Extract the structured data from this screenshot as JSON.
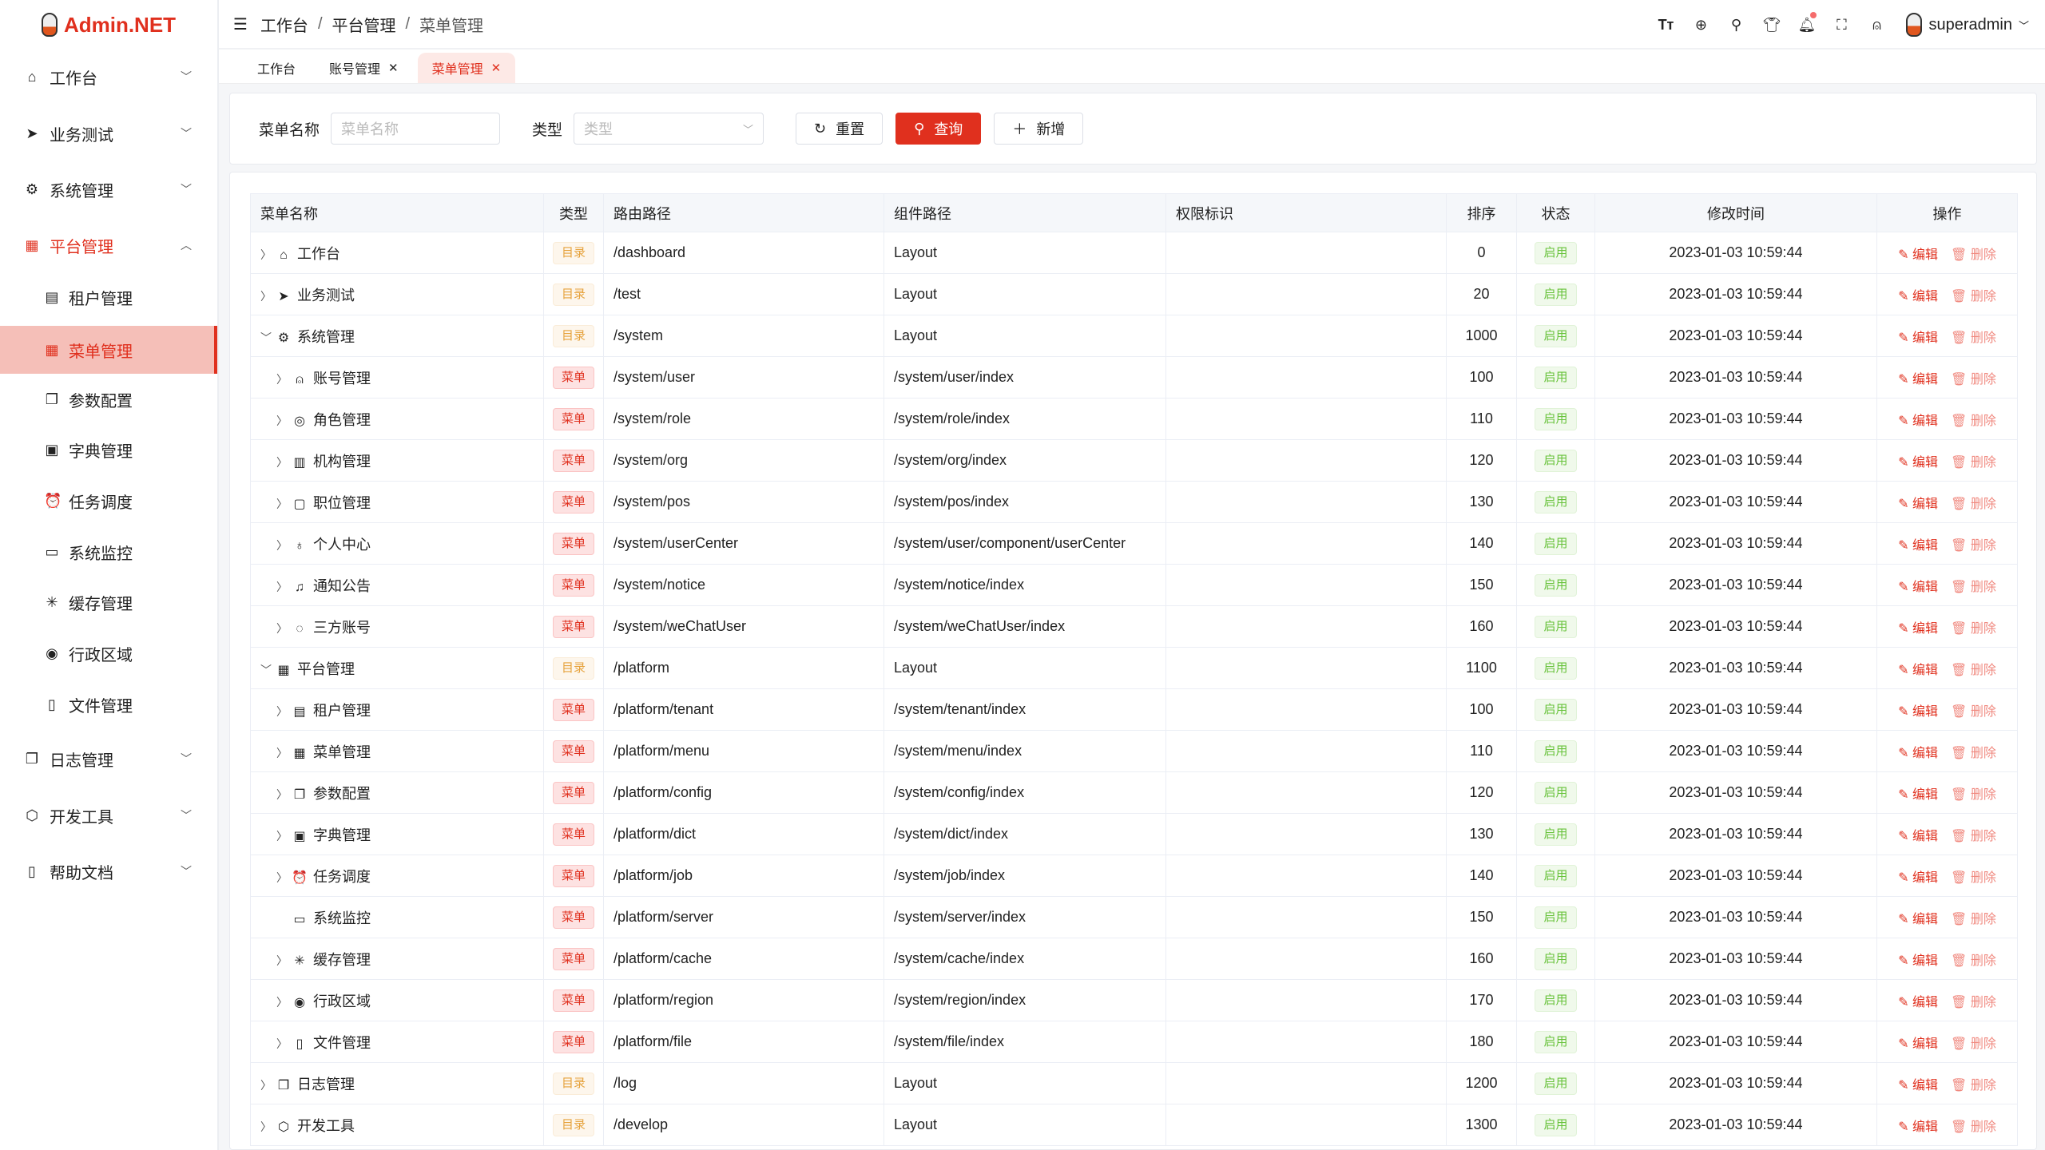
{
  "app": {
    "logo": "Admin.NET"
  },
  "sidebar": {
    "items": [
      {
        "label": "工作台",
        "icon": "home-icon",
        "glyph": "⌂",
        "chevron": "﹀",
        "type": "top"
      },
      {
        "label": "业务测试",
        "icon": "send-icon",
        "glyph": "➤",
        "chevron": "﹀",
        "type": "top"
      },
      {
        "label": "系统管理",
        "icon": "gear-icon",
        "glyph": "⚙",
        "chevron": "﹀",
        "type": "top"
      },
      {
        "label": "平台管理",
        "icon": "grid-icon",
        "glyph": "▦",
        "chevron": "︿",
        "type": "open"
      },
      {
        "label": "租户管理",
        "icon": "tenant-icon",
        "glyph": "▤",
        "type": "sub"
      },
      {
        "label": "菜单管理",
        "icon": "grid-icon",
        "glyph": "▦",
        "type": "active"
      },
      {
        "label": "参数配置",
        "icon": "config-icon",
        "glyph": "❐",
        "type": "sub"
      },
      {
        "label": "字典管理",
        "icon": "book-icon",
        "glyph": "▣",
        "type": "sub"
      },
      {
        "label": "任务调度",
        "icon": "alarm-icon",
        "glyph": "⏰",
        "type": "sub"
      },
      {
        "label": "系统监控",
        "icon": "monitor-icon",
        "glyph": "▭",
        "type": "sub"
      },
      {
        "label": "缓存管理",
        "icon": "loading-icon",
        "glyph": "✳",
        "type": "sub"
      },
      {
        "label": "行政区域",
        "icon": "location-icon",
        "glyph": "◉",
        "type": "sub"
      },
      {
        "label": "文件管理",
        "icon": "document-icon",
        "glyph": "▯",
        "type": "sub"
      },
      {
        "label": "日志管理",
        "icon": "copy-icon",
        "glyph": "❐",
        "chevron": "﹀",
        "type": "top"
      },
      {
        "label": "开发工具",
        "icon": "cpu-icon",
        "glyph": "⬡",
        "chevron": "﹀",
        "type": "top"
      },
      {
        "label": "帮助文档",
        "icon": "notebook-icon",
        "glyph": "▯",
        "chevron": "﹀",
        "type": "top"
      }
    ]
  },
  "header": {
    "breadcrumb": [
      "工作台",
      "平台管理",
      "菜单管理"
    ],
    "user": "superadmin"
  },
  "tabs": [
    {
      "label": "工作台",
      "closable": false
    },
    {
      "label": "账号管理",
      "closable": true
    },
    {
      "label": "菜单管理",
      "closable": true,
      "active": true
    }
  ],
  "search": {
    "name_label": "菜单名称",
    "name_placeholder": "菜单名称",
    "type_label": "类型",
    "type_placeholder": "类型",
    "reset": "重置",
    "query": "查询",
    "add": "新增"
  },
  "table": {
    "columns": [
      "菜单名称",
      "类型",
      "路由路径",
      "组件路径",
      "权限标识",
      "排序",
      "状态",
      "修改时间",
      "操作"
    ],
    "edit": "编辑",
    "delete": "删除",
    "rows": [
      {
        "name": "工作台",
        "icon": "home-icon",
        "glyph": "⌂",
        "level": 0,
        "expand": "collapsed",
        "type": "目录",
        "route": "/dashboard",
        "component": "Layout",
        "perm": "",
        "order": "0",
        "status": "启用",
        "time": "2023-01-03 10:59:44"
      },
      {
        "name": "业务测试",
        "icon": "send-icon",
        "glyph": "➤",
        "level": 0,
        "expand": "collapsed",
        "type": "目录",
        "route": "/test",
        "component": "Layout",
        "perm": "",
        "order": "20",
        "status": "启用",
        "time": "2023-01-03 10:59:44"
      },
      {
        "name": "系统管理",
        "icon": "gear-icon",
        "glyph": "⚙",
        "level": 0,
        "expand": "expanded",
        "type": "目录",
        "route": "/system",
        "component": "Layout",
        "perm": "",
        "order": "1000",
        "status": "启用",
        "time": "2023-01-03 10:59:44"
      },
      {
        "name": "账号管理",
        "icon": "user-icon",
        "glyph": "⍝",
        "level": 1,
        "expand": "collapsed",
        "type": "菜单",
        "route": "/system/user",
        "component": "/system/user/index",
        "perm": "",
        "order": "100",
        "status": "启用",
        "time": "2023-01-03 10:59:44"
      },
      {
        "name": "角色管理",
        "icon": "help-icon",
        "glyph": "◎",
        "level": 1,
        "expand": "collapsed",
        "type": "菜单",
        "route": "/system/role",
        "component": "/system/role/index",
        "perm": "",
        "order": "110",
        "status": "启用",
        "time": "2023-01-03 10:59:44"
      },
      {
        "name": "机构管理",
        "icon": "office-icon",
        "glyph": "▥",
        "level": 1,
        "expand": "collapsed",
        "type": "菜单",
        "route": "/system/org",
        "component": "/system/org/index",
        "perm": "",
        "order": "120",
        "status": "启用",
        "time": "2023-01-03 10:59:44"
      },
      {
        "name": "职位管理",
        "icon": "postcard-icon",
        "glyph": "▢",
        "level": 1,
        "expand": "collapsed",
        "type": "菜单",
        "route": "/system/pos",
        "component": "/system/pos/index",
        "perm": "",
        "order": "130",
        "status": "启用",
        "time": "2023-01-03 10:59:44"
      },
      {
        "name": "个人中心",
        "icon": "medal-icon",
        "glyph": "♁",
        "level": 1,
        "expand": "collapsed",
        "type": "菜单",
        "route": "/system/userCenter",
        "component": "/system/user/component/userCenter",
        "perm": "",
        "order": "140",
        "status": "启用",
        "time": "2023-01-03 10:59:44"
      },
      {
        "name": "通知公告",
        "icon": "bell-icon",
        "glyph": "♫",
        "level": 1,
        "expand": "collapsed",
        "type": "菜单",
        "route": "/system/notice",
        "component": "/system/notice/index",
        "perm": "",
        "order": "150",
        "status": "启用",
        "time": "2023-01-03 10:59:44"
      },
      {
        "name": "三方账号",
        "icon": "chat-icon",
        "glyph": "◌",
        "level": 1,
        "expand": "collapsed",
        "type": "菜单",
        "route": "/system/weChatUser",
        "component": "/system/weChatUser/index",
        "perm": "",
        "order": "160",
        "status": "启用",
        "time": "2023-01-03 10:59:44"
      },
      {
        "name": "平台管理",
        "icon": "grid-icon",
        "glyph": "▦",
        "level": 0,
        "expand": "expanded",
        "type": "目录",
        "route": "/platform",
        "component": "Layout",
        "perm": "",
        "order": "1100",
        "status": "启用",
        "time": "2023-01-03 10:59:44"
      },
      {
        "name": "租户管理",
        "icon": "tenant-icon",
        "glyph": "▤",
        "level": 1,
        "expand": "collapsed",
        "type": "菜单",
        "route": "/platform/tenant",
        "component": "/system/tenant/index",
        "perm": "",
        "order": "100",
        "status": "启用",
        "time": "2023-01-03 10:59:44"
      },
      {
        "name": "菜单管理",
        "icon": "grid-icon",
        "glyph": "▦",
        "level": 1,
        "expand": "collapsed",
        "type": "菜单",
        "route": "/platform/menu",
        "component": "/system/menu/index",
        "perm": "",
        "order": "110",
        "status": "启用",
        "time": "2023-01-03 10:59:44"
      },
      {
        "name": "参数配置",
        "icon": "config-icon",
        "glyph": "❐",
        "level": 1,
        "expand": "collapsed",
        "type": "菜单",
        "route": "/platform/config",
        "component": "/system/config/index",
        "perm": "",
        "order": "120",
        "status": "启用",
        "time": "2023-01-03 10:59:44"
      },
      {
        "name": "字典管理",
        "icon": "book-icon",
        "glyph": "▣",
        "level": 1,
        "expand": "collapsed",
        "type": "菜单",
        "route": "/platform/dict",
        "component": "/system/dict/index",
        "perm": "",
        "order": "130",
        "status": "启用",
        "time": "2023-01-03 10:59:44"
      },
      {
        "name": "任务调度",
        "icon": "alarm-icon",
        "glyph": "⏰",
        "level": 1,
        "expand": "collapsed",
        "type": "菜单",
        "route": "/platform/job",
        "component": "/system/job/index",
        "perm": "",
        "order": "140",
        "status": "启用",
        "time": "2023-01-03 10:59:44"
      },
      {
        "name": "系统监控",
        "icon": "monitor-icon",
        "glyph": "▭",
        "level": 1,
        "expand": "none",
        "type": "菜单",
        "route": "/platform/server",
        "component": "/system/server/index",
        "perm": "",
        "order": "150",
        "status": "启用",
        "time": "2023-01-03 10:59:44"
      },
      {
        "name": "缓存管理",
        "icon": "loading-icon",
        "glyph": "✳",
        "level": 1,
        "expand": "collapsed",
        "type": "菜单",
        "route": "/platform/cache",
        "component": "/system/cache/index",
        "perm": "",
        "order": "160",
        "status": "启用",
        "time": "2023-01-03 10:59:44"
      },
      {
        "name": "行政区域",
        "icon": "location-icon",
        "glyph": "◉",
        "level": 1,
        "expand": "collapsed",
        "type": "菜单",
        "route": "/platform/region",
        "component": "/system/region/index",
        "perm": "",
        "order": "170",
        "status": "启用",
        "time": "2023-01-03 10:59:44"
      },
      {
        "name": "文件管理",
        "icon": "document-icon",
        "glyph": "▯",
        "level": 1,
        "expand": "collapsed",
        "type": "菜单",
        "route": "/platform/file",
        "component": "/system/file/index",
        "perm": "",
        "order": "180",
        "status": "启用",
        "time": "2023-01-03 10:59:44"
      },
      {
        "name": "日志管理",
        "icon": "copy-icon",
        "glyph": "❐",
        "level": 0,
        "expand": "collapsed",
        "type": "目录",
        "route": "/log",
        "component": "Layout",
        "perm": "",
        "order": "1200",
        "status": "启用",
        "time": "2023-01-03 10:59:44"
      },
      {
        "name": "开发工具",
        "icon": "cpu-icon",
        "glyph": "⬡",
        "level": 0,
        "expand": "collapsed",
        "type": "目录",
        "route": "/develop",
        "component": "Layout",
        "perm": "",
        "order": "1300",
        "status": "启用",
        "time": "2023-01-03 10:59:44"
      }
    ]
  },
  "colors": {
    "accent": "#e0301e",
    "dir_tag": "#e6a23c",
    "status_on": "#67c23a"
  }
}
